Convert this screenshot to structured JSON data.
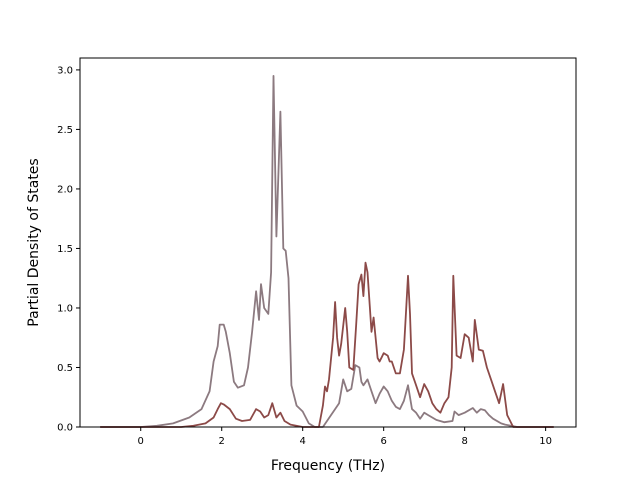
{
  "chart_data": {
    "type": "line",
    "xlabel": "Frequency (THz)",
    "ylabel": "Partial Density of States",
    "xlim": [
      -1.5,
      10.75
    ],
    "ylim": [
      0.0,
      3.1
    ],
    "xticks": [
      "0",
      "2",
      "4",
      "6",
      "8",
      "10"
    ],
    "yticks": [
      "0.0",
      "0.5",
      "1.0",
      "1.5",
      "2.0",
      "2.5",
      "3.0"
    ],
    "grid": false,
    "legend": "none",
    "series": [
      {
        "color": "#8c7a80",
        "points": [
          [
            -1.0,
            0.0
          ],
          [
            0.0,
            0.0
          ],
          [
            0.4,
            0.01
          ],
          [
            0.8,
            0.03
          ],
          [
            1.2,
            0.08
          ],
          [
            1.5,
            0.15
          ],
          [
            1.7,
            0.3
          ],
          [
            1.8,
            0.55
          ],
          [
            1.9,
            0.68
          ],
          [
            1.95,
            0.86
          ],
          [
            2.05,
            0.86
          ],
          [
            2.1,
            0.8
          ],
          [
            2.2,
            0.62
          ],
          [
            2.3,
            0.38
          ],
          [
            2.4,
            0.33
          ],
          [
            2.55,
            0.35
          ],
          [
            2.65,
            0.5
          ],
          [
            2.75,
            0.8
          ],
          [
            2.85,
            1.14
          ],
          [
            2.92,
            0.9
          ],
          [
            2.97,
            1.2
          ],
          [
            3.05,
            1.0
          ],
          [
            3.15,
            0.95
          ],
          [
            3.22,
            1.3
          ],
          [
            3.28,
            2.95
          ],
          [
            3.35,
            1.6
          ],
          [
            3.45,
            2.65
          ],
          [
            3.52,
            1.5
          ],
          [
            3.58,
            1.48
          ],
          [
            3.65,
            1.25
          ],
          [
            3.72,
            0.35
          ],
          [
            3.85,
            0.18
          ],
          [
            4.0,
            0.13
          ],
          [
            4.15,
            0.03
          ],
          [
            4.3,
            0.0
          ],
          [
            4.5,
            0.0
          ],
          [
            4.6,
            0.05
          ],
          [
            4.7,
            0.1
          ],
          [
            4.8,
            0.15
          ],
          [
            4.9,
            0.2
          ],
          [
            5.0,
            0.4
          ],
          [
            5.1,
            0.3
          ],
          [
            5.2,
            0.32
          ],
          [
            5.3,
            0.52
          ],
          [
            5.4,
            0.5
          ],
          [
            5.45,
            0.38
          ],
          [
            5.5,
            0.35
          ],
          [
            5.6,
            0.4
          ],
          [
            5.7,
            0.3
          ],
          [
            5.8,
            0.2
          ],
          [
            5.9,
            0.28
          ],
          [
            6.0,
            0.34
          ],
          [
            6.1,
            0.3
          ],
          [
            6.2,
            0.22
          ],
          [
            6.3,
            0.17
          ],
          [
            6.4,
            0.15
          ],
          [
            6.5,
            0.22
          ],
          [
            6.6,
            0.35
          ],
          [
            6.7,
            0.15
          ],
          [
            6.8,
            0.12
          ],
          [
            6.9,
            0.07
          ],
          [
            7.0,
            0.12
          ],
          [
            7.1,
            0.1
          ],
          [
            7.3,
            0.06
          ],
          [
            7.5,
            0.04
          ],
          [
            7.7,
            0.05
          ],
          [
            7.75,
            0.13
          ],
          [
            7.85,
            0.1
          ],
          [
            8.0,
            0.12
          ],
          [
            8.2,
            0.16
          ],
          [
            8.3,
            0.12
          ],
          [
            8.4,
            0.15
          ],
          [
            8.5,
            0.14
          ],
          [
            8.6,
            0.1
          ],
          [
            8.7,
            0.07
          ],
          [
            8.9,
            0.03
          ],
          [
            9.0,
            0.02
          ],
          [
            9.3,
            0.0
          ],
          [
            10.2,
            0.0
          ]
        ]
      },
      {
        "color": "#8c4a48",
        "points": [
          [
            -1.0,
            0.0
          ],
          [
            0.5,
            0.0
          ],
          [
            1.0,
            0.0
          ],
          [
            1.3,
            0.01
          ],
          [
            1.6,
            0.03
          ],
          [
            1.8,
            0.08
          ],
          [
            1.9,
            0.15
          ],
          [
            1.98,
            0.2
          ],
          [
            2.05,
            0.19
          ],
          [
            2.2,
            0.15
          ],
          [
            2.35,
            0.07
          ],
          [
            2.5,
            0.05
          ],
          [
            2.7,
            0.06
          ],
          [
            2.85,
            0.15
          ],
          [
            2.95,
            0.13
          ],
          [
            3.05,
            0.08
          ],
          [
            3.15,
            0.1
          ],
          [
            3.25,
            0.2
          ],
          [
            3.35,
            0.08
          ],
          [
            3.45,
            0.12
          ],
          [
            3.55,
            0.05
          ],
          [
            3.7,
            0.02
          ],
          [
            4.0,
            0.0
          ],
          [
            4.4,
            0.0
          ],
          [
            4.5,
            0.18
          ],
          [
            4.55,
            0.34
          ],
          [
            4.6,
            0.3
          ],
          [
            4.65,
            0.4
          ],
          [
            4.75,
            0.75
          ],
          [
            4.8,
            1.05
          ],
          [
            4.85,
            0.75
          ],
          [
            4.9,
            0.6
          ],
          [
            4.95,
            0.7
          ],
          [
            5.05,
            1.0
          ],
          [
            5.1,
            0.8
          ],
          [
            5.15,
            0.5
          ],
          [
            5.25,
            0.48
          ],
          [
            5.32,
            0.85
          ],
          [
            5.38,
            1.2
          ],
          [
            5.45,
            1.28
          ],
          [
            5.5,
            1.1
          ],
          [
            5.55,
            1.38
          ],
          [
            5.6,
            1.3
          ],
          [
            5.65,
            1.05
          ],
          [
            5.7,
            0.8
          ],
          [
            5.75,
            0.92
          ],
          [
            5.8,
            0.75
          ],
          [
            5.85,
            0.58
          ],
          [
            5.9,
            0.55
          ],
          [
            6.0,
            0.62
          ],
          [
            6.1,
            0.6
          ],
          [
            6.15,
            0.55
          ],
          [
            6.2,
            0.55
          ],
          [
            6.3,
            0.45
          ],
          [
            6.4,
            0.45
          ],
          [
            6.5,
            0.65
          ],
          [
            6.55,
            0.95
          ],
          [
            6.6,
            1.27
          ],
          [
            6.65,
            0.95
          ],
          [
            6.7,
            0.45
          ],
          [
            6.8,
            0.35
          ],
          [
            6.9,
            0.25
          ],
          [
            7.0,
            0.36
          ],
          [
            7.1,
            0.3
          ],
          [
            7.2,
            0.2
          ],
          [
            7.3,
            0.15
          ],
          [
            7.4,
            0.12
          ],
          [
            7.5,
            0.2
          ],
          [
            7.6,
            0.25
          ],
          [
            7.68,
            0.5
          ],
          [
            7.72,
            1.27
          ],
          [
            7.8,
            0.6
          ],
          [
            7.9,
            0.58
          ],
          [
            8.0,
            0.78
          ],
          [
            8.1,
            0.75
          ],
          [
            8.2,
            0.55
          ],
          [
            8.25,
            0.9
          ],
          [
            8.35,
            0.65
          ],
          [
            8.45,
            0.64
          ],
          [
            8.55,
            0.5
          ],
          [
            8.65,
            0.4
          ],
          [
            8.75,
            0.3
          ],
          [
            8.85,
            0.2
          ],
          [
            8.95,
            0.36
          ],
          [
            9.05,
            0.1
          ],
          [
            9.2,
            0.0
          ],
          [
            10.2,
            0.0
          ]
        ]
      }
    ]
  }
}
